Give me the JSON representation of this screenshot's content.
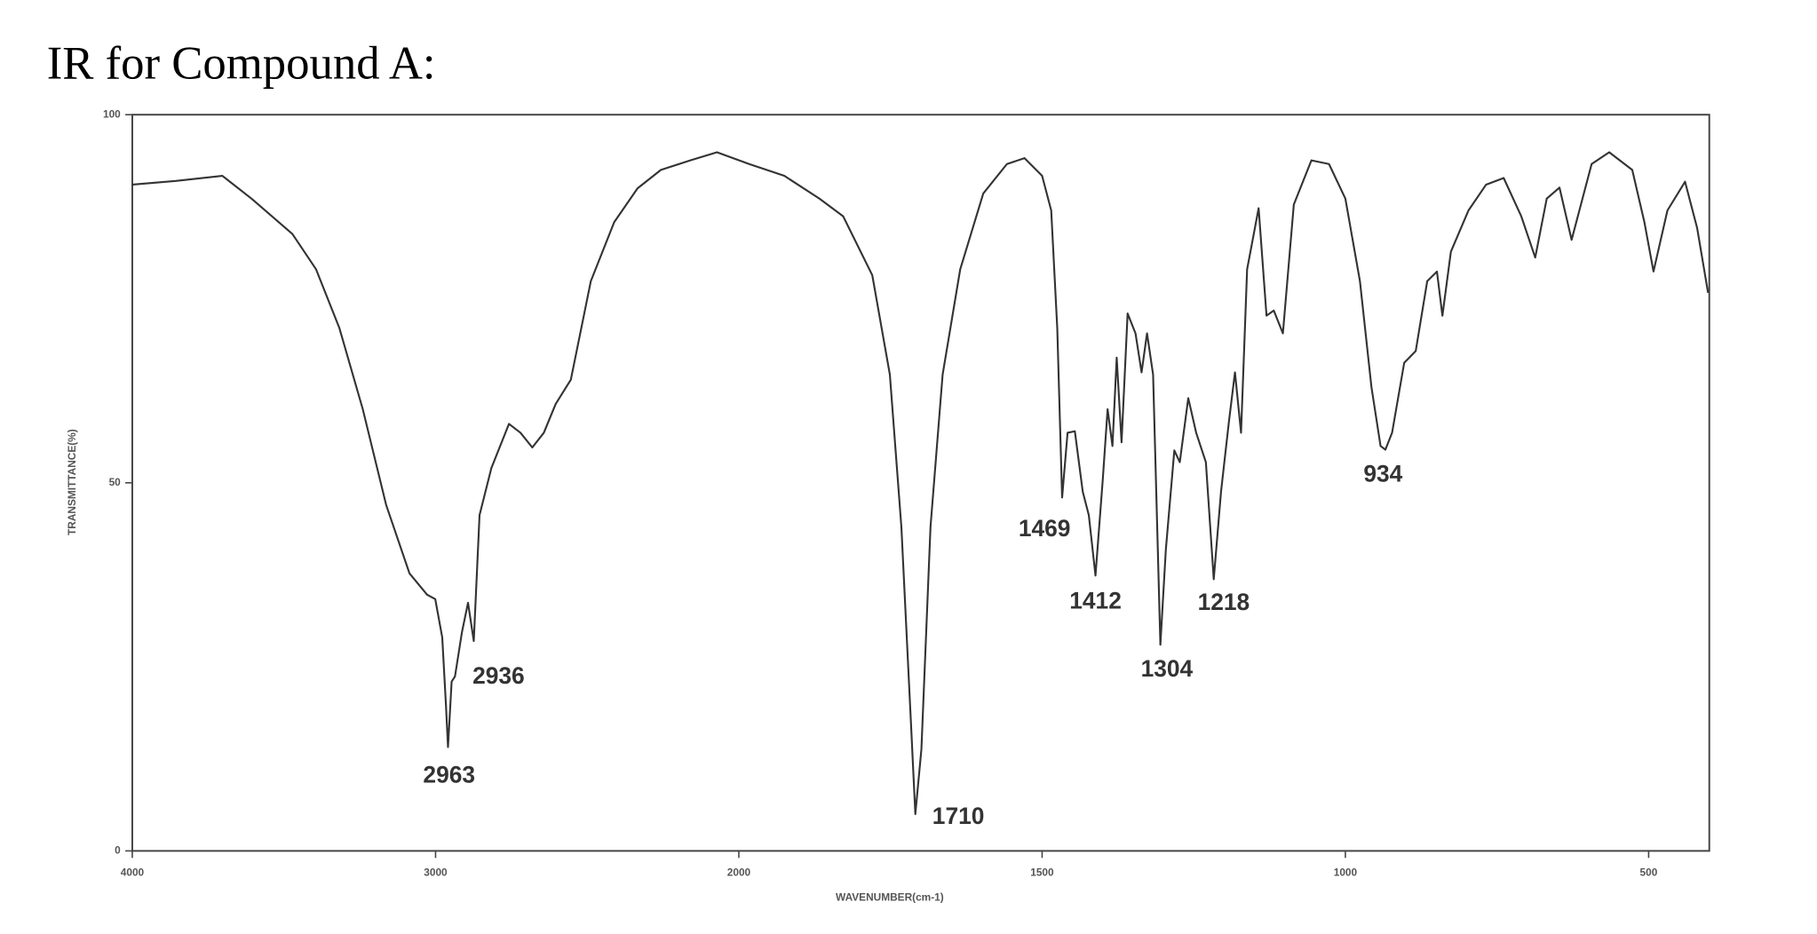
{
  "chart_data": {
    "type": "line",
    "title": "IR for Compound A:",
    "xlabel": "WAVENUMBER(cm-1)",
    "ylabel": "TRANSMITTANCE(%)",
    "color": "#333333",
    "xlim": [
      4000,
      400
    ],
    "x_scale_change": {
      "at": 2000,
      "factor": 2
    },
    "ylim": [
      0,
      100
    ],
    "xticks": [
      4000,
      3000,
      2000,
      1500,
      1000,
      500
    ],
    "yticks": [
      0,
      50,
      100
    ],
    "x": [
      4000,
      3857,
      3703,
      3607,
      3472,
      3394,
      3317,
      3240,
      3163,
      3086,
      3028,
      3001,
      2978,
      2966,
      2959,
      2947,
      2936,
      2913,
      2893,
      2874,
      2855,
      2816,
      2758,
      2720,
      2681,
      2643,
      2604,
      2554,
      2488,
      2411,
      2334,
      2257,
      2160,
      2072,
      1983,
      1925,
      1867,
      1828,
      1780,
      1751,
      1732,
      1716,
      1709,
      1699,
      1684,
      1664,
      1635,
      1597,
      1558,
      1529,
      1500,
      1485,
      1475,
      1467,
      1458,
      1446,
      1433,
      1423,
      1412,
      1400,
      1392,
      1384,
      1377,
      1369,
      1359,
      1346,
      1336,
      1327,
      1317,
      1305,
      1296,
      1282,
      1273,
      1259,
      1246,
      1230,
      1217,
      1205,
      1192,
      1182,
      1172,
      1162,
      1143,
      1130,
      1118,
      1103,
      1085,
      1056,
      1027,
      1000,
      976,
      957,
      942,
      934,
      923,
      903,
      884,
      865,
      849,
      840,
      826,
      797,
      768,
      739,
      710,
      687,
      668,
      647,
      627,
      594,
      565,
      527,
      507,
      492,
      469,
      440,
      420,
      402
    ],
    "values": [
      90.5,
      91,
      91.7,
      88.6,
      83.8,
      79,
      71,
      60,
      47,
      37.7,
      34.8,
      34.2,
      29,
      20,
      14.1,
      23,
      23.7,
      29.7,
      33.7,
      28.5,
      45.6,
      52,
      58,
      56.8,
      54.8,
      56.8,
      60.7,
      64,
      77.4,
      85.4,
      90,
      92.5,
      93.8,
      94.9,
      93.3,
      91.7,
      88.6,
      86.2,
      78.2,
      64.7,
      44,
      17,
      5,
      13.8,
      44,
      64.7,
      79,
      89.3,
      93.3,
      94.1,
      91.7,
      87,
      71,
      48,
      56.8,
      57,
      48.8,
      45.6,
      37.4,
      50.4,
      60,
      55,
      67,
      55.5,
      73,
      70.3,
      65,
      70.3,
      64.7,
      28,
      40.9,
      54.4,
      52.8,
      61.5,
      56.8,
      52.8,
      36.9,
      48.8,
      58.3,
      65,
      56.8,
      79,
      87.3,
      72.7,
      73.4,
      70.3,
      87.8,
      93.8,
      93.3,
      88.6,
      77.4,
      63,
      55,
      54.5,
      56.8,
      66.3,
      67.9,
      77.4,
      78.7,
      72.7,
      81.4,
      87,
      90.5,
      91.4,
      86.2,
      80.6,
      88.6,
      90.1,
      83,
      93.3,
      94.9,
      92.5,
      85.4,
      78.7,
      87,
      90.9,
      84.6,
      75.8
    ],
    "peaks": [
      {
        "x": 2963,
        "y": 14.1
      },
      {
        "x": 2936,
        "y": 23.7
      },
      {
        "x": 1710,
        "y": 5
      },
      {
        "x": 1469,
        "y": 48
      },
      {
        "x": 1412,
        "y": 37.4
      },
      {
        "x": 1304,
        "y": 28
      },
      {
        "x": 1218,
        "y": 36.9
      },
      {
        "x": 934,
        "y": 54.5
      }
    ]
  }
}
